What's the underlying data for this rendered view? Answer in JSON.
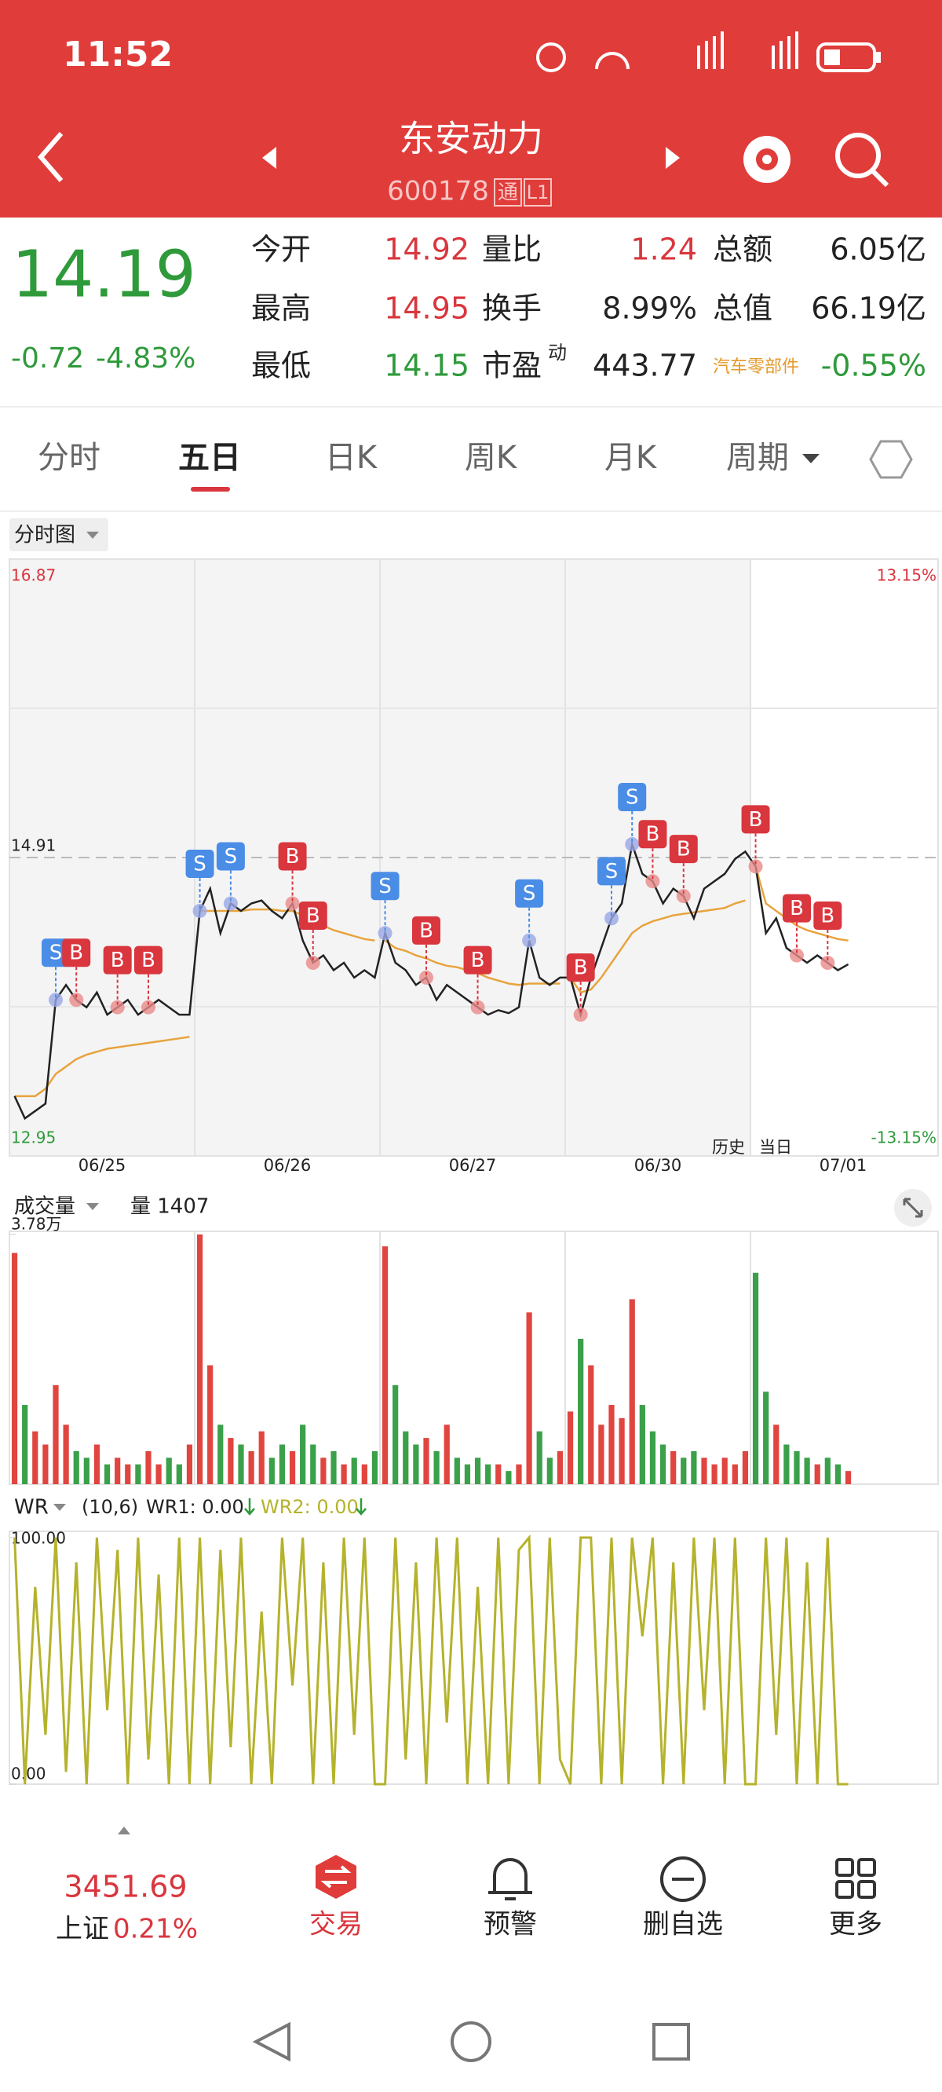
{
  "status_bar": {
    "time": "11:52"
  },
  "header": {
    "title": "东安动力",
    "code": "600178",
    "badges": [
      "通",
      "L1"
    ]
  },
  "quote": {
    "price": "14.19",
    "change": "-0.72",
    "change_pct": "-4.83%",
    "rows": [
      [
        {
          "label": "今开",
          "value": "14.92"
        },
        {
          "label": "量比",
          "value": "1.24"
        },
        {
          "label": "总额",
          "value": "6.05亿"
        }
      ],
      [
        {
          "label": "最高",
          "value": "14.95"
        },
        {
          "label": "换手",
          "value": "8.99%"
        },
        {
          "label": "总值",
          "value": "66.19亿"
        }
      ],
      [
        {
          "label": "最低",
          "value": "14.15"
        },
        {
          "label": "市盈",
          "sup": "动",
          "value": "443.77"
        },
        {
          "label": "汽车零部件",
          "value": "-0.55%"
        }
      ]
    ]
  },
  "tabs": [
    "分时",
    "五日",
    "日K",
    "周K",
    "月K",
    "周期"
  ],
  "price_chart": {
    "type": "line",
    "selector": "分时图",
    "ylim": [
      12.95,
      16.87
    ],
    "yticks": [
      12.95,
      14.91,
      16.87
    ],
    "pct_labels": [
      "13.15%",
      "-13.15%"
    ],
    "dates": [
      "06/25",
      "06/26",
      "06/27",
      "06/30",
      "07/01"
    ],
    "day_labels": [
      "历史",
      "当日"
    ],
    "prices": [
      13.3,
      13.15,
      13.2,
      13.25,
      13.95,
      14.05,
      13.95,
      13.9,
      14.0,
      13.85,
      13.9,
      13.95,
      13.85,
      13.9,
      13.95,
      13.9,
      13.85,
      13.85,
      14.55,
      14.7,
      14.4,
      14.6,
      14.55,
      14.6,
      14.62,
      14.55,
      14.5,
      14.6,
      14.35,
      14.2,
      14.25,
      14.15,
      14.2,
      14.1,
      14.15,
      14.1,
      14.4,
      14.2,
      14.15,
      14.05,
      14.1,
      13.95,
      14.05,
      14.0,
      13.95,
      13.9,
      13.85,
      13.88,
      13.86,
      13.9,
      14.35,
      14.1,
      14.05,
      14.1,
      14.1,
      13.85,
      14.1,
      14.3,
      14.5,
      14.6,
      15.0,
      14.8,
      14.75,
      14.6,
      14.7,
      14.65,
      14.5,
      14.7,
      14.75,
      14.8,
      14.9,
      14.95,
      14.85,
      14.4,
      14.5,
      14.3,
      14.25,
      14.2,
      14.25,
      14.2,
      14.15,
      14.19
    ],
    "avg": [
      13.3,
      13.3,
      13.3,
      13.35,
      13.45,
      13.5,
      13.55,
      13.58,
      13.6,
      13.62,
      13.63,
      13.64,
      13.65,
      13.66,
      13.67,
      13.68,
      13.69,
      13.7,
      14.55,
      14.55,
      14.55,
      14.55,
      14.55,
      14.56,
      14.56,
      14.56,
      14.55,
      14.55,
      14.52,
      14.48,
      14.45,
      14.42,
      14.4,
      14.38,
      14.36,
      14.35,
      14.35,
      14.3,
      14.28,
      14.25,
      14.23,
      14.2,
      14.18,
      14.17,
      14.15,
      14.13,
      14.1,
      14.08,
      14.06,
      14.05,
      14.06,
      14.06,
      14.06,
      14.06,
      14.1,
      14.0,
      14.02,
      14.1,
      14.2,
      14.3,
      14.4,
      14.45,
      14.48,
      14.5,
      14.52,
      14.53,
      14.54,
      14.55,
      14.56,
      14.57,
      14.6,
      14.62,
      14.85,
      14.6,
      14.55,
      14.5,
      14.45,
      14.42,
      14.4,
      14.38,
      14.36,
      14.35
    ],
    "signals": [
      null,
      null,
      null,
      null,
      "S",
      null,
      "B",
      null,
      null,
      null,
      "B",
      null,
      null,
      "B",
      null,
      null,
      null,
      null,
      "S",
      null,
      null,
      "S",
      null,
      null,
      null,
      null,
      null,
      "B",
      null,
      "B",
      null,
      null,
      null,
      null,
      null,
      null,
      "S",
      null,
      null,
      null,
      "B",
      null,
      null,
      null,
      null,
      "B",
      null,
      null,
      null,
      null,
      "S",
      null,
      null,
      null,
      null,
      "B",
      null,
      null,
      "S",
      null,
      "S",
      null,
      "B",
      null,
      null,
      "B",
      null,
      null,
      null,
      null,
      null,
      null,
      "B",
      null,
      null,
      null,
      "B",
      null,
      null,
      "B",
      null,
      null
    ]
  },
  "volume_chart": {
    "type": "bar",
    "title": "成交量",
    "current": "量 1407",
    "ylim": [
      0,
      3.78
    ],
    "yticks": [
      {
        "value": 3.78,
        "label": "3.78万"
      }
    ],
    "values": [
      3.5,
      1.2,
      0.8,
      0.6,
      1.5,
      0.9,
      0.5,
      0.4,
      0.6,
      0.3,
      0.4,
      0.3,
      0.3,
      0.5,
      0.3,
      0.4,
      0.3,
      0.6,
      3.78,
      1.8,
      0.9,
      0.7,
      0.6,
      0.5,
      0.8,
      0.4,
      0.6,
      0.5,
      0.9,
      0.6,
      0.4,
      0.5,
      0.3,
      0.4,
      0.3,
      0.5,
      3.6,
      1.5,
      0.8,
      0.6,
      0.7,
      0.5,
      0.9,
      0.4,
      0.3,
      0.4,
      0.3,
      0.3,
      0.2,
      0.3,
      2.6,
      0.8,
      0.4,
      0.5,
      1.1,
      2.2,
      1.8,
      0.9,
      1.2,
      1.0,
      2.8,
      1.2,
      0.8,
      0.6,
      0.5,
      0.4,
      0.5,
      0.4,
      0.3,
      0.4,
      0.3,
      0.5,
      3.2,
      1.4,
      0.9,
      0.6,
      0.5,
      0.4,
      0.3,
      0.4,
      0.3,
      0.2
    ]
  },
  "wr_chart": {
    "type": "line",
    "title": "WR",
    "params": "(10,6)",
    "wr1": "WR1: 0.00",
    "wr2": "WR2: 0.00",
    "ylim": [
      0,
      100
    ],
    "yticks": [
      {
        "value": 0,
        "label": "0.00"
      },
      {
        "value": 100,
        "label": "100.00"
      }
    ],
    "values": [
      100,
      0,
      80,
      20,
      100,
      5,
      90,
      0,
      100,
      30,
      95,
      0,
      100,
      10,
      85,
      0,
      100,
      0,
      100,
      0,
      95,
      15,
      100,
      0,
      70,
      0,
      100,
      40,
      100,
      0,
      90,
      0,
      100,
      20,
      100,
      0,
      0,
      100,
      10,
      90,
      0,
      100,
      25,
      100,
      0,
      80,
      0,
      100,
      0,
      95,
      100,
      0,
      100,
      10,
      0,
      100,
      100,
      0,
      100,
      0,
      100,
      60,
      100,
      0,
      90,
      0,
      100,
      30,
      100,
      0,
      100,
      0,
      0,
      100,
      20,
      100,
      0,
      90,
      0,
      100,
      0,
      0
    ]
  },
  "footer": {
    "index_value": "3451.69",
    "index_name": "上证",
    "index_change": "0.21%",
    "nav": [
      "交易",
      "预警",
      "删自选",
      "更多"
    ]
  }
}
